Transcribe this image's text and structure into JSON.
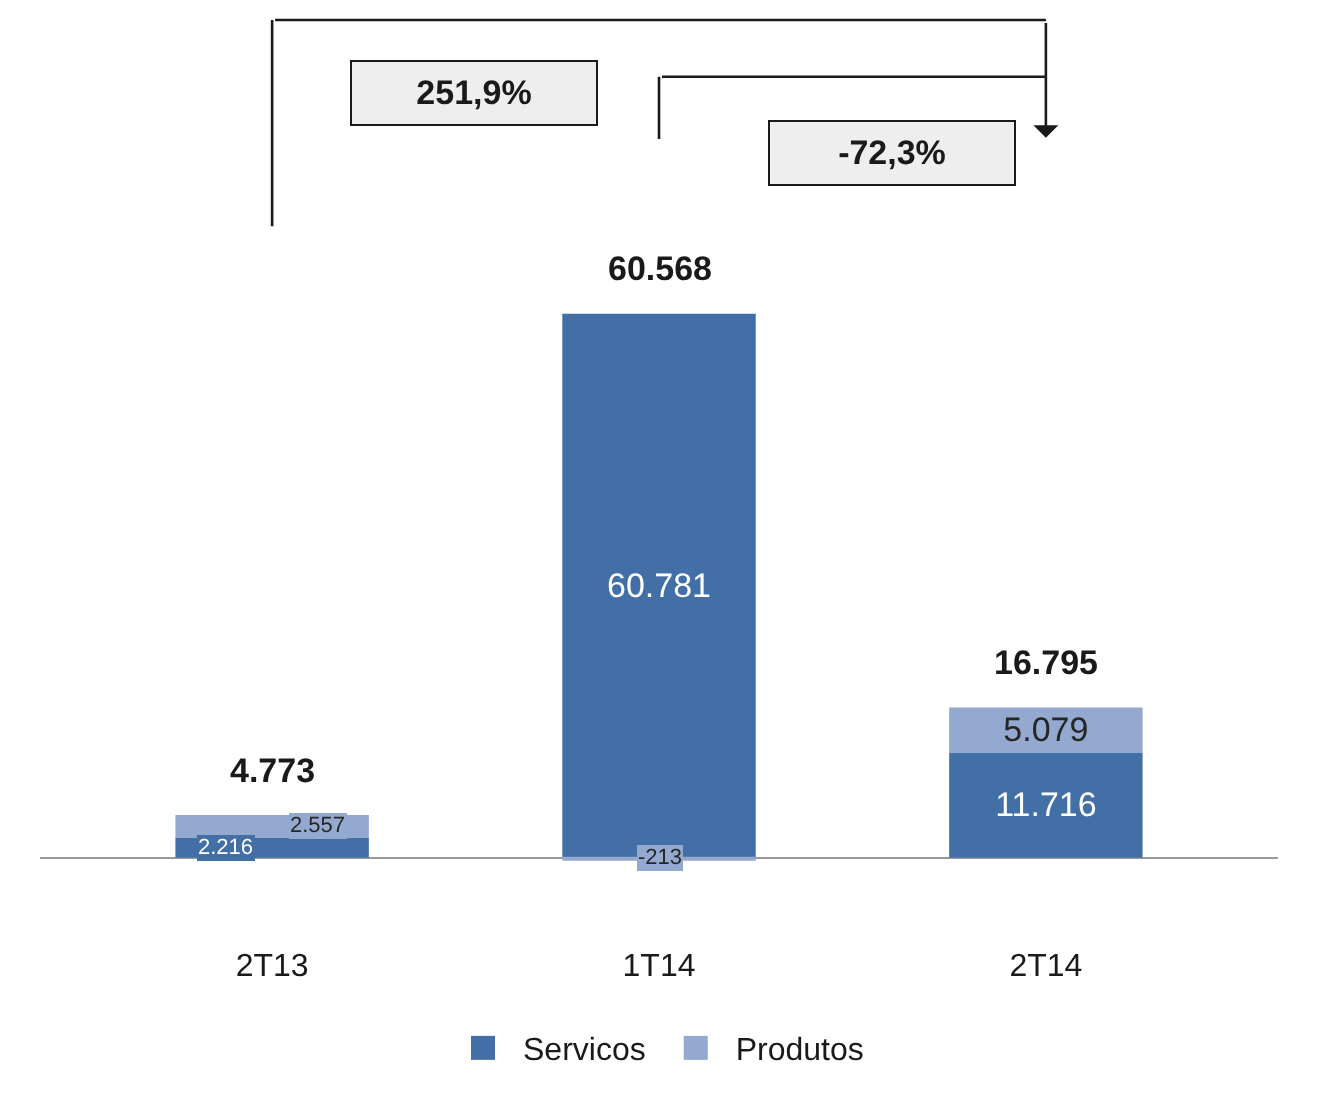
{
  "chart_data": {
    "type": "bar",
    "stacked": true,
    "categories": [
      "2T13",
      "1T14",
      "2T14"
    ],
    "series": [
      {
        "name": "Servicos",
        "color": "#426fa6",
        "values": [
          2216,
          60781,
          11716
        ],
        "value_labels": [
          "2.216",
          "60.781",
          "11.716"
        ]
      },
      {
        "name": "Produtos",
        "color": "#93a9cf",
        "values": [
          2557,
          -213,
          5079
        ],
        "value_labels": [
          "2.557",
          "-213",
          "5.079"
        ]
      }
    ],
    "totals": [
      "4.773",
      "60.568",
      "16.795"
    ],
    "annotations": [
      "251,9%",
      "-72,3%"
    ],
    "legend": "bottom"
  }
}
